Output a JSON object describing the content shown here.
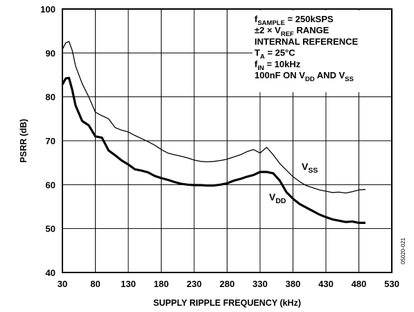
{
  "chart_data": {
    "type": "line",
    "xlabel": "SUPPLY RIPPLE FREQUENCY (kHz)",
    "ylabel": "PSRR (dB)",
    "xlim": [
      30,
      530
    ],
    "ylim": [
      40,
      100
    ],
    "xticks": [
      30,
      80,
      130,
      180,
      230,
      280,
      330,
      380,
      430,
      480,
      530
    ],
    "yticks": [
      40,
      50,
      60,
      70,
      80,
      90,
      100
    ],
    "grid": true,
    "annotation_lines": [
      "f_SAMPLE = 250kSPS",
      "±2 × V_REF RANGE",
      "INTERNAL REFERENCE",
      "T_A = 25°C",
      "f_IN = 10kHz",
      "100nF ON V_DD AND V_SS"
    ],
    "series": [
      {
        "name": "V_SS",
        "label_main": "V",
        "label_sub": "SS",
        "x": [
          30,
          35,
          40,
          45,
          50,
          60,
          70,
          80,
          90,
          100,
          110,
          120,
          130,
          140,
          150,
          160,
          170,
          180,
          190,
          200,
          210,
          220,
          230,
          240,
          250,
          260,
          270,
          280,
          290,
          300,
          310,
          320,
          330,
          340,
          350,
          360,
          370,
          380,
          390,
          400,
          410,
          420,
          430,
          440,
          450,
          460,
          470,
          480,
          490
        ],
        "values": [
          90.8,
          92.3,
          92.6,
          90.5,
          87,
          83,
          80,
          76.5,
          75.7,
          75,
          73,
          72.4,
          72,
          71.2,
          70.5,
          69.8,
          69,
          68,
          67.2,
          66.8,
          66.5,
          66.1,
          65.6,
          65.3,
          65.2,
          65.3,
          65.5,
          65.8,
          66.3,
          66.8,
          67.5,
          68,
          67.2,
          68.5,
          66.8,
          64.8,
          63.3,
          61.8,
          60.7,
          59.8,
          59.3,
          58.8,
          58.5,
          58.2,
          58.3,
          58.1,
          58.4,
          58.8,
          58.9
        ]
      },
      {
        "name": "V_DD",
        "label_main": "V",
        "label_sub": "DD",
        "x": [
          30,
          35,
          40,
          45,
          50,
          60,
          70,
          80,
          90,
          100,
          110,
          120,
          130,
          140,
          150,
          160,
          170,
          180,
          190,
          200,
          210,
          220,
          230,
          240,
          250,
          260,
          270,
          280,
          290,
          300,
          310,
          320,
          330,
          340,
          350,
          360,
          370,
          380,
          390,
          400,
          410,
          420,
          430,
          440,
          450,
          460,
          470,
          480,
          490
        ],
        "values": [
          82.8,
          84.2,
          84.3,
          81.5,
          78,
          74.5,
          73.5,
          71,
          70.7,
          67.8,
          66.7,
          65.5,
          64.6,
          63.5,
          63.2,
          62.8,
          62,
          61.5,
          61.1,
          60.6,
          60.2,
          60,
          59.9,
          59.9,
          59.8,
          59.8,
          60,
          60.3,
          60.9,
          61.3,
          61.8,
          62.2,
          62.9,
          62.9,
          62.6,
          60.9,
          58.3,
          56.8,
          55.6,
          54.8,
          54,
          53.2,
          52.6,
          52.1,
          51.8,
          51.5,
          51.6,
          51.3,
          51.3
        ]
      }
    ]
  },
  "side_code": "05020-021"
}
